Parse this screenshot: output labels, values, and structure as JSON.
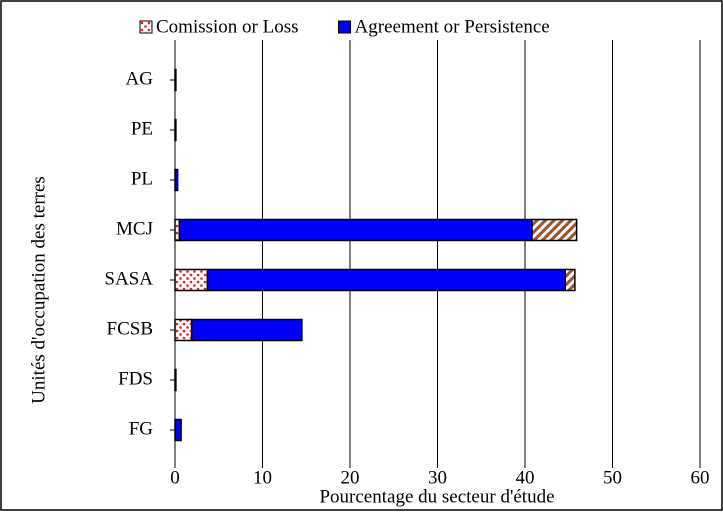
{
  "chart_data": {
    "type": "stacked-barh",
    "categories": [
      "AG",
      "PE",
      "PL",
      "MCJ",
      "SASA",
      "FCSB",
      "FDS",
      "FG"
    ],
    "series": [
      {
        "name": "Comission or Loss",
        "color": "#e02020",
        "fill": "dots",
        "values": [
          0,
          0,
          0,
          0.5,
          3.7,
          1.9,
          0,
          0
        ]
      },
      {
        "name": "Agreement or Persistence",
        "color": "#0000ff",
        "fill": "solid",
        "values": [
          0.1,
          0.1,
          0.3,
          40.3,
          40.9,
          12.6,
          0.1,
          0.7
        ]
      },
      {
        "color": "#a0522d",
        "fill": "hatch",
        "values": [
          0,
          0,
          0,
          5.1,
          1.1,
          0,
          0,
          0
        ]
      }
    ],
    "xlim": [
      0,
      60
    ],
    "xticks": [
      0,
      10,
      20,
      30,
      40,
      50,
      60
    ],
    "grid": true,
    "xlabel": "Pourcentage du secteur d'étude",
    "ylabel": "Unités  d'occupation des terres",
    "legend": "top"
  }
}
